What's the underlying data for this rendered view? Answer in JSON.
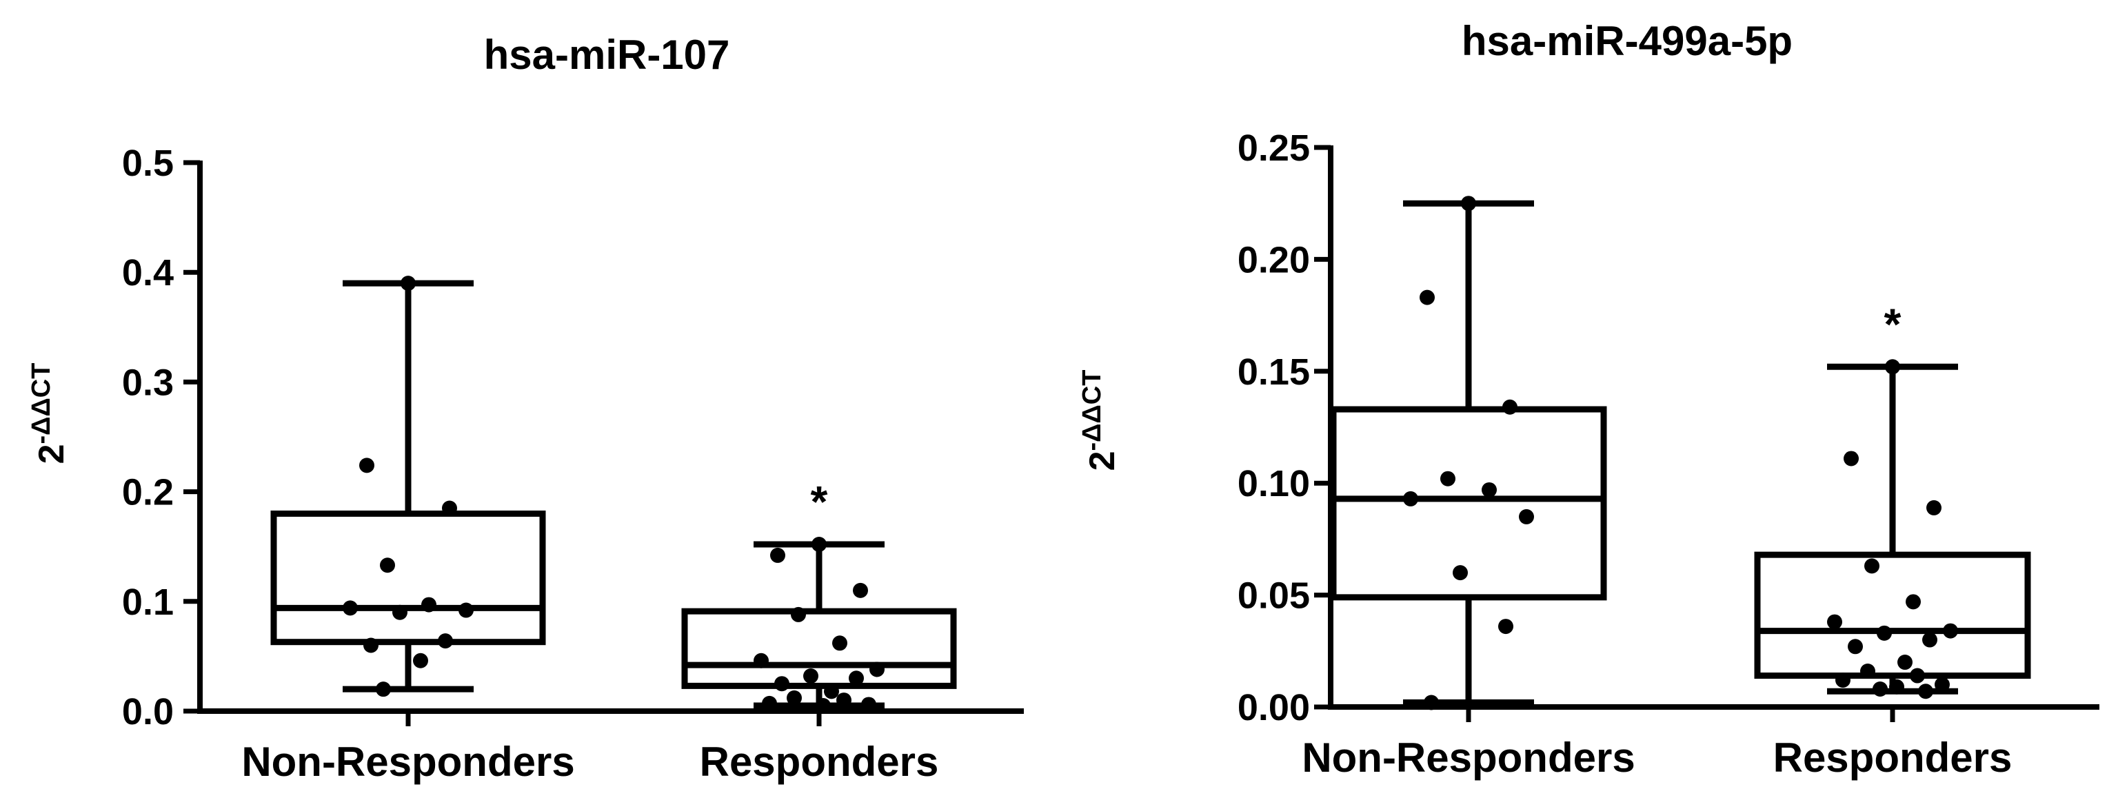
{
  "chart_data": [
    {
      "type": "box",
      "title": "hsa-miR-107",
      "ylabel": {
        "base": "2",
        "sup": "-ΔΔCT"
      },
      "ylim": [
        0,
        0.5
      ],
      "yticks": [
        "0.0",
        "0.1",
        "0.2",
        "0.3",
        "0.4",
        "0.5"
      ],
      "yticks_values": [
        0,
        0.1,
        0.2,
        0.3,
        0.4,
        0.5
      ],
      "categories": [
        "Non-Responders",
        "Responders"
      ],
      "groups": [
        {
          "name": "Non-Responders",
          "whisker_low": 0.02,
          "q1": 0.063,
          "median": 0.094,
          "q3": 0.18,
          "whisker_high": 0.39,
          "points": [
            0.39,
            0.224,
            0.185,
            0.133,
            0.097,
            0.094,
            0.092,
            0.09,
            0.064,
            0.06,
            0.046,
            0.02
          ],
          "significance": ""
        },
        {
          "name": "Responders",
          "whisker_low": 0.005,
          "q1": 0.023,
          "median": 0.042,
          "q3": 0.091,
          "whisker_high": 0.152,
          "points": [
            0.152,
            0.142,
            0.11,
            0.088,
            0.062,
            0.046,
            0.038,
            0.032,
            0.03,
            0.025,
            0.018,
            0.012,
            0.01,
            0.007,
            0.006,
            0.005
          ],
          "significance": "*"
        }
      ]
    },
    {
      "type": "box",
      "title": "hsa-miR-499a-5p",
      "ylabel": {
        "base": "2",
        "sup": "-ΔΔCT"
      },
      "ylim": [
        0,
        0.25
      ],
      "yticks": [
        "0.00",
        "0.05",
        "0.10",
        "0.15",
        "0.20",
        "0.25"
      ],
      "yticks_values": [
        0,
        0.05,
        0.1,
        0.15,
        0.2,
        0.25
      ],
      "categories": [
        "Non-Responders",
        "Responders"
      ],
      "groups": [
        {
          "name": "Non-Responders",
          "whisker_low": 0.002,
          "q1": 0.049,
          "median": 0.093,
          "q3": 0.133,
          "whisker_high": 0.225,
          "points": [
            0.225,
            0.183,
            0.134,
            0.102,
            0.097,
            0.093,
            0.085,
            0.06,
            0.036,
            0.002
          ],
          "significance": ""
        },
        {
          "name": "Responders",
          "whisker_low": 0.007,
          "q1": 0.014,
          "median": 0.034,
          "q3": 0.068,
          "whisker_high": 0.152,
          "points": [
            0.152,
            0.111,
            0.089,
            0.063,
            0.047,
            0.038,
            0.034,
            0.033,
            0.03,
            0.027,
            0.02,
            0.016,
            0.014,
            0.012,
            0.01,
            0.009,
            0.008,
            0.007
          ],
          "significance": "*"
        }
      ]
    }
  ]
}
